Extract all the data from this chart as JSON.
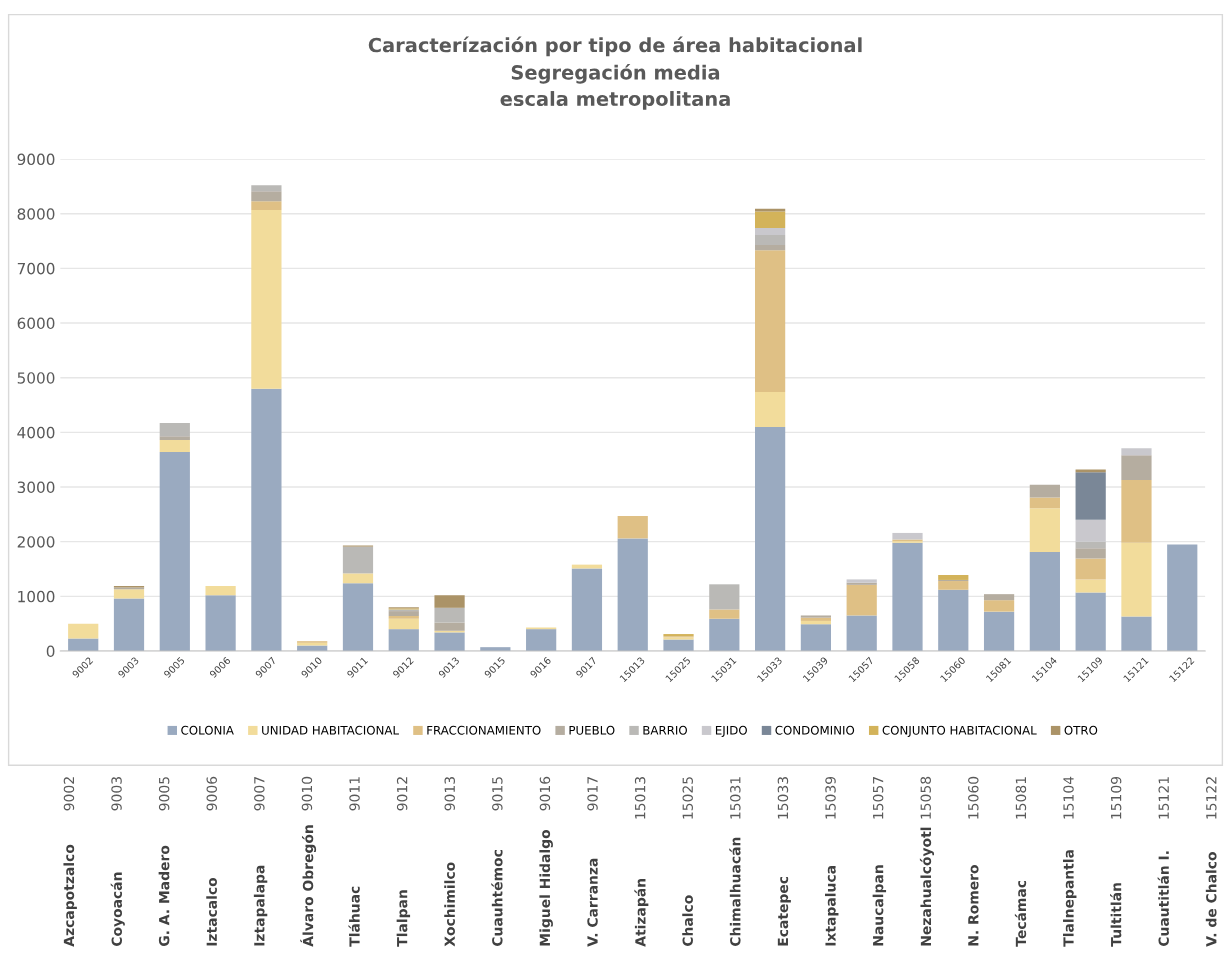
{
  "chart_data": {
    "type": "bar",
    "stacked": true,
    "title": "Caracterízación por tipo de área habitacional\nSegregación media\nescala metropolitana",
    "categories": [
      "9002",
      "9003",
      "9005",
      "9006",
      "9007",
      "9010",
      "9011",
      "9012",
      "9013",
      "9015",
      "9016",
      "9017",
      "15013",
      "15025",
      "15031",
      "15033",
      "15039",
      "15057",
      "15058",
      "15060",
      "15081",
      "15104",
      "15109",
      "15121",
      "15122"
    ],
    "series": [
      {
        "name": "COLONIA",
        "color": "#9aaac0",
        "values": [
          230,
          960,
          3640,
          1020,
          4800,
          100,
          1240,
          400,
          340,
          70,
          400,
          1510,
          2060,
          210,
          590,
          4100,
          490,
          650,
          1980,
          1120,
          720,
          1810,
          1070,
          630,
          1950
        ]
      },
      {
        "name": "UNIDAD HABITACIONAL",
        "color": "#f2dc9b",
        "values": [
          270,
          170,
          220,
          170,
          3270,
          50,
          180,
          190,
          30,
          0,
          30,
          70,
          0,
          40,
          0,
          640,
          60,
          0,
          30,
          0,
          0,
          800,
          240,
          1350,
          0
        ]
      },
      {
        "name": "FRACCIONAMIENTO",
        "color": "#dfc085",
        "values": [
          0,
          0,
          0,
          0,
          160,
          30,
          0,
          50,
          0,
          0,
          0,
          0,
          410,
          20,
          170,
          2590,
          60,
          560,
          30,
          160,
          210,
          200,
          380,
          1150,
          0
        ]
      },
      {
        "name": "PUEBLO",
        "color": "#b5ada0",
        "values": [
          0,
          30,
          70,
          0,
          180,
          0,
          0,
          90,
          150,
          0,
          0,
          0,
          0,
          0,
          0,
          100,
          40,
          40,
          0,
          20,
          110,
          230,
          190,
          450,
          0
        ]
      },
      {
        "name": "BARRIO",
        "color": "#bab9b6",
        "values": [
          0,
          null,
          240,
          null,
          110,
          0,
          490,
          30,
          270,
          0,
          0,
          0,
          0,
          null,
          460,
          180,
          0,
          0,
          0,
          0,
          0,
          0,
          120,
          0,
          null
        ]
      },
      {
        "name": "EJIDO",
        "color": "#c9c8cd",
        "values": [
          0,
          0,
          null,
          0,
          0,
          0,
          0,
          0,
          0,
          0,
          0,
          0,
          0,
          0,
          0,
          130,
          0,
          60,
          120,
          0,
          0,
          0,
          400,
          130,
          0
        ]
      },
      {
        "name": "CONDOMINIO",
        "color": "#7a8797",
        "values": [
          0,
          0,
          0,
          0,
          0,
          0,
          0,
          0,
          0,
          0,
          0,
          0,
          0,
          0,
          0,
          0,
          0,
          0,
          0,
          0,
          0,
          0,
          870,
          0,
          0
        ]
      },
      {
        "name": "CONJUNTO HABITACIONAL",
        "color": "#d3b35a",
        "values": [
          0,
          0,
          0,
          0,
          0,
          0,
          0,
          20,
          0,
          0,
          0,
          0,
          0,
          40,
          0,
          300,
          0,
          0,
          0,
          90,
          0,
          0,
          0,
          0,
          0
        ]
      },
      {
        "name": "OTRO",
        "color": "#ab9367",
        "values": [
          0,
          30,
          0,
          0,
          0,
          0,
          20,
          20,
          230,
          0,
          0,
          0,
          0,
          0,
          0,
          50,
          0,
          0,
          0,
          0,
          0,
          0,
          50,
          0,
          0
        ]
      }
    ],
    "ylim": [
      0,
      9000
    ],
    "yticks": [
      0,
      1000,
      2000,
      3000,
      4000,
      5000,
      6000,
      7000,
      8000,
      9000
    ],
    "grid": "y",
    "legend": "bottom",
    "annotations": [
      "9002",
      "9003",
      "9005",
      "9006",
      "9007",
      "9010",
      "9011",
      "9012",
      "9013",
      "9015",
      "9016",
      "9017",
      "15013",
      "15025",
      "15031",
      "15033",
      "15039",
      "15057",
      "15058",
      "15060",
      "15081",
      "15104",
      "15109",
      "15121",
      "15122",
      "Azcapotzalco",
      "Coyoacán",
      "G. A. Madero",
      "Iztacalco",
      "Iztapalapa",
      "Álvaro Obregón",
      "Tláhuac",
      "Tlalpan",
      "Xochimilco",
      "Cuauhtémoc",
      "Miguel Hidalgo",
      "V. Carranza",
      "Atizapán",
      "Chalco",
      "Chimalhuacán",
      "Ecatepec",
      "Ixtapaluca",
      "Naucalpan",
      "Nezahualcóyotl",
      "N. Romero",
      "Tecámac",
      "Tlalnepantla",
      "Tultitlán",
      "Cuautitlán I.",
      "V. de Chalco"
    ]
  }
}
